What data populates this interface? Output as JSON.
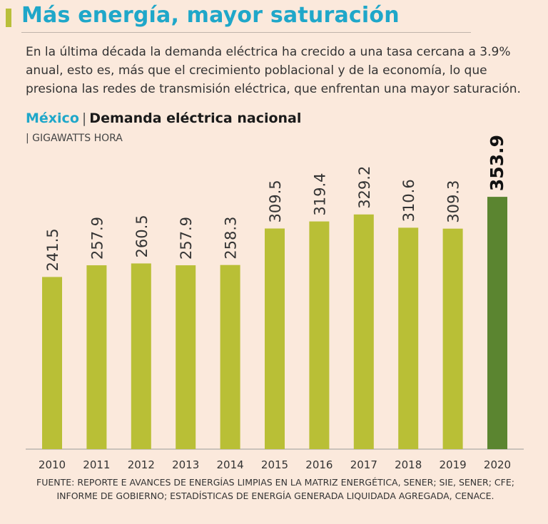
{
  "header": {
    "title": "Más energía, mayor saturación",
    "intro": "En la última década la demanda eléctrica ha crecido a una tasa cercana a 3.9% anual, esto es, más que el crecimiento poblacional y de la economía, lo que presiona las redes de transmisión eléctrica, que enfrentan una mayor saturación."
  },
  "chart_data": {
    "type": "bar",
    "country_label": "México",
    "separator": "|",
    "title": "Demanda eléctrica nacional",
    "unit_label": "| GIGAWATTS HORA",
    "categories": [
      "2010",
      "2011",
      "2012",
      "2013",
      "2014",
      "2015",
      "2016",
      "2017",
      "2018",
      "2019",
      "2020"
    ],
    "values": [
      241.5,
      257.9,
      260.5,
      257.9,
      258.3,
      309.5,
      319.4,
      329.2,
      310.6,
      309.3,
      353.9
    ],
    "value_labels": [
      "241.5",
      "257.9",
      "260.5",
      "257.9",
      "258.3",
      "309.5",
      "319.4",
      "329.2",
      "310.6",
      "309.3",
      "353.9"
    ],
    "highlight_index": 10,
    "colors": {
      "bar": "#b9bf36",
      "highlight": "#5b8530"
    },
    "grid": false,
    "legend": "none"
  },
  "footer": {
    "source": "FUENTE: REPORTE E AVANCES DE ENERGÍAS LIMPIAS EN LA MATRIZ ENERGÉTICA, SENER; SIE, SENER; CFE; INFORME DE GOBIERNO; ESTADÍSTICAS DE ENERGÍA GENERADA LIQUIDADA AGREGADA, CENACE."
  }
}
